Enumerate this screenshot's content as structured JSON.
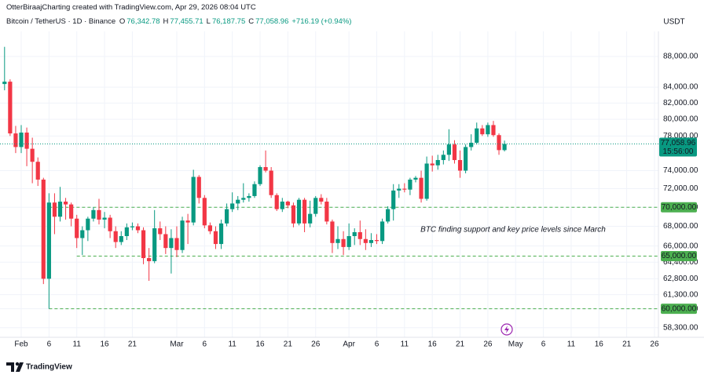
{
  "header": {
    "credit": "OtterBiraajCharting created with TradingView.com, Apr 29, 2026 08:04 UTC",
    "symbol": "Bitcoin / TetherUS · 1D · Binance",
    "quote": [
      {
        "key": "O",
        "value": "76,342.78"
      },
      {
        "key": "H",
        "value": "77,455.71"
      },
      {
        "key": "L",
        "value": "76,187.75"
      },
      {
        "key": "C",
        "value": "77,058.96"
      }
    ],
    "change": "+716.19 (+0.94%)",
    "currency": "USDT",
    "logo": "TradingView"
  },
  "chart_data": {
    "type": "candlestick",
    "log_scale": true,
    "grid": true,
    "up_color": "#089981",
    "down_color": "#f23645",
    "level_color": "#4caf50",
    "categories": [
      null,
      null,
      null,
      "Feb",
      null,
      null,
      null,
      null,
      "6",
      null,
      null,
      null,
      null,
      "11",
      null,
      null,
      null,
      null,
      "16",
      null,
      null,
      null,
      null,
      "21",
      null,
      null,
      null,
      null,
      null,
      null,
      null,
      "Mar",
      null,
      null,
      null,
      null,
      "6",
      null,
      null,
      null,
      null,
      "11",
      null,
      null,
      null,
      null,
      "16",
      null,
      null,
      null,
      null,
      "21",
      null,
      null,
      null,
      null,
      "26",
      null,
      null,
      null,
      null,
      null,
      "Apr",
      null,
      null,
      null,
      null,
      "6",
      null,
      null,
      null,
      null,
      "11",
      null,
      null,
      null,
      null,
      "16",
      null,
      null,
      null,
      null,
      "21",
      null,
      null,
      null,
      null,
      "26",
      null,
      null,
      null,
      null,
      "May",
      null,
      null,
      null,
      null,
      "6",
      null,
      null,
      null,
      null,
      "11",
      null,
      null,
      null,
      null,
      "16",
      null,
      null,
      null,
      null,
      "21",
      null,
      null,
      null,
      null,
      "26"
    ],
    "open": [
      84400,
      84700,
      78300,
      76700,
      78400,
      76500,
      75000,
      73000,
      62800,
      70500,
      69000,
      70600,
      70300,
      68800,
      66800,
      67600,
      68800,
      69700,
      68700,
      68900,
      67500,
      66400,
      67000,
      67900,
      68000,
      67600,
      64800,
      64500,
      67800,
      67200,
      65800,
      66800,
      65600,
      68600,
      68400,
      73300,
      71000,
      68100,
      67500,
      66200,
      68300,
      69800,
      70400,
      70800,
      71000,
      71200,
      72500,
      74400,
      74000,
      71300,
      69800,
      70600,
      70200,
      68300,
      70800,
      68300,
      69300,
      71000,
      70600,
      68500,
      66300,
      66700,
      65900,
      67000,
      67400,
      66700,
      66300,
      66600,
      66500,
      68500,
      69800,
      71800,
      72000,
      71900,
      73000,
      73200,
      70900,
      74800,
      74600,
      75200,
      75800,
      77000,
      75200,
      74000,
      76700,
      77200,
      78900,
      78200,
      79300,
      78100,
      76342.78,
      null,
      null,
      null,
      null,
      null,
      null,
      null,
      null,
      null,
      null,
      null,
      null,
      null,
      null,
      null,
      null,
      null,
      null,
      null,
      null,
      null,
      null,
      null,
      null,
      null,
      null,
      null
    ],
    "high": [
      89300,
      85000,
      79200,
      79300,
      79000,
      77800,
      75500,
      73200,
      71500,
      71500,
      72200,
      71000,
      70500,
      69200,
      68000,
      69000,
      70000,
      70900,
      69500,
      69200,
      68000,
      67500,
      68300,
      68400,
      68300,
      67900,
      65800,
      69700,
      68500,
      68000,
      67700,
      68000,
      69000,
      69300,
      74100,
      73500,
      71300,
      68400,
      68000,
      68700,
      70400,
      71600,
      71200,
      72600,
      71500,
      72800,
      74600,
      76300,
      74400,
      71500,
      71000,
      70700,
      70500,
      71000,
      71000,
      70700,
      71200,
      71400,
      71000,
      68700,
      68000,
      67500,
      68300,
      67800,
      68600,
      67700,
      67300,
      67200,
      68800,
      70100,
      72500,
      72500,
      72600,
      73200,
      73400,
      74000,
      75600,
      75700,
      75800,
      76300,
      78800,
      77500,
      76300,
      77000,
      78200,
      79600,
      79300,
      79600,
      79800,
      78300,
      77455.71,
      null,
      null,
      null,
      null,
      null,
      null,
      null,
      null,
      null,
      null,
      null,
      null,
      null,
      null,
      null,
      null,
      null,
      null,
      null,
      null,
      null,
      null,
      null,
      null,
      null,
      null,
      null
    ],
    "low": [
      83600,
      78000,
      76000,
      76000,
      74500,
      72600,
      72300,
      62300,
      60000,
      67200,
      68500,
      68700,
      68000,
      65800,
      65100,
      66500,
      68500,
      68200,
      67800,
      66800,
      65800,
      66100,
      66600,
      67600,
      67300,
      64200,
      62600,
      64300,
      66600,
      65200,
      63300,
      64900,
      65300,
      66200,
      68100,
      70400,
      67800,
      67200,
      65700,
      65700,
      68000,
      69500,
      69700,
      70500,
      70600,
      71000,
      72300,
      73800,
      71000,
      69600,
      69500,
      69900,
      67900,
      68100,
      67400,
      67900,
      69000,
      70300,
      68200,
      65300,
      65700,
      65100,
      65600,
      66100,
      66100,
      65600,
      65900,
      66200,
      66200,
      68300,
      68600,
      71000,
      71600,
      71300,
      72700,
      70500,
      70700,
      73900,
      74100,
      74700,
      75100,
      74800,
      73200,
      73700,
      76300,
      77000,
      78000,
      77900,
      77900,
      75800,
      76187.75,
      null,
      null,
      null,
      null,
      null,
      null,
      null,
      null,
      null,
      null,
      null,
      null,
      null,
      null,
      null,
      null,
      null,
      null,
      null,
      null,
      null,
      null,
      null,
      null,
      null,
      null,
      null
    ],
    "close": [
      84700,
      78300,
      76700,
      78400,
      76500,
      75000,
      73000,
      62800,
      70500,
      69000,
      70600,
      70300,
      68800,
      66800,
      67600,
      68800,
      69700,
      68700,
      68900,
      67500,
      66400,
      67000,
      67900,
      68000,
      67600,
      64800,
      64500,
      67800,
      67200,
      65800,
      66800,
      65600,
      68600,
      68400,
      73300,
      71000,
      68100,
      67500,
      66200,
      68300,
      69800,
      70400,
      70800,
      71000,
      71200,
      72500,
      74400,
      74000,
      71300,
      69800,
      70600,
      70200,
      68300,
      70800,
      68300,
      69300,
      71000,
      70600,
      68500,
      66300,
      66700,
      65900,
      67000,
      67400,
      66700,
      66300,
      66600,
      66500,
      68500,
      69800,
      71800,
      72000,
      71900,
      73000,
      73200,
      70900,
      74800,
      74600,
      75200,
      75800,
      77000,
      75200,
      74000,
      76700,
      77200,
      78900,
      78200,
      79300,
      78100,
      76342.77,
      77058.96,
      null,
      null,
      null,
      null,
      null,
      null,
      null,
      null,
      null,
      null,
      null,
      null,
      null,
      null,
      null,
      null,
      null,
      null,
      null,
      null,
      null,
      null,
      null,
      null,
      null,
      null,
      null
    ],
    "ylim": [
      57460,
      91420
    ],
    "yticks": [
      {
        "value": 58300,
        "label": "58,300.00"
      },
      {
        "value": 60000,
        "label": "60,000.00"
      },
      {
        "value": 61300,
        "label": "61,300.00"
      },
      {
        "value": 62800,
        "label": "62,800.00"
      },
      {
        "value": 64400,
        "label": "64,400.00"
      },
      {
        "value": 66000,
        "label": "66,000.00"
      },
      {
        "value": 68000,
        "label": "68,000.00"
      },
      {
        "value": 70000,
        "label": "70,000.00"
      },
      {
        "value": 72000,
        "label": "72,000.00"
      },
      {
        "value": 74000,
        "label": "74,000.00"
      },
      {
        "value": 78000,
        "label": "78,000.00"
      },
      {
        "value": 80000,
        "label": "80,000.00"
      },
      {
        "value": 82000,
        "label": "82,000.00"
      },
      {
        "value": 84000,
        "label": "84,000.00"
      },
      {
        "value": 88000,
        "label": "88,000.00"
      }
    ],
    "levels": [
      {
        "value": 70000,
        "label": "70,000.00"
      },
      {
        "value": 65000,
        "label": "65,000.00"
      },
      {
        "value": 60000,
        "label": "60,000.00"
      }
    ],
    "last_price": {
      "value": 77058.96,
      "label": "77,058.96"
    },
    "countdown": "15:56:00",
    "annotation": "BTC finding support and key price levels since March"
  }
}
